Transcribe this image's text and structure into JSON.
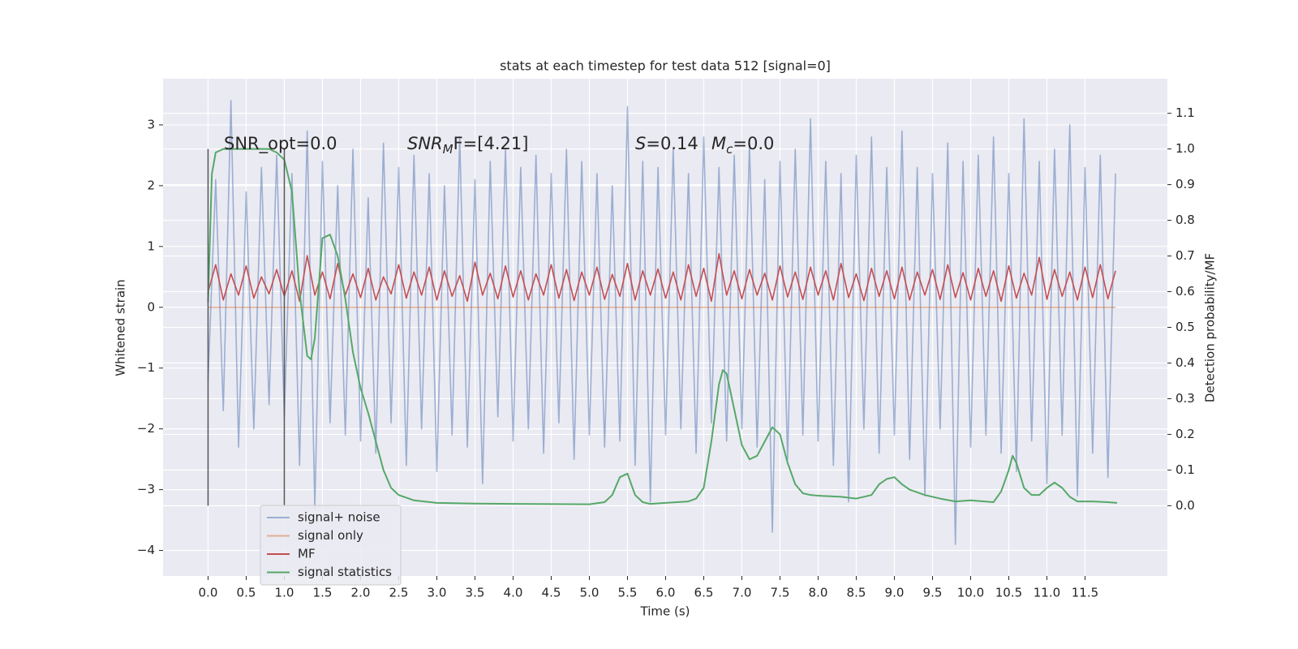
{
  "chart_data": {
    "type": "line",
    "title": "stats at each timestep for test data 512 [signal=0]",
    "xlabel": "Time (s)",
    "ylabel": "Whitened strain",
    "y2label": "Detection probability/MF",
    "xlim": [
      -0.59,
      12.58
    ],
    "ylim": [
      -4.42,
      3.76
    ],
    "y2lim": [
      -0.197,
      1.197
    ],
    "xticks": [
      {
        "value": 0,
        "label": "0.0"
      },
      0.5,
      {
        "value": 1,
        "label": "1.0"
      },
      1.5,
      {
        "value": 2,
        "label": "2.0"
      },
      2.5,
      {
        "value": 3,
        "label": "3.0"
      },
      3.5,
      {
        "value": 4,
        "label": "4.0"
      },
      4.5,
      {
        "value": 5,
        "label": "5.0"
      },
      5.5,
      {
        "value": 6,
        "label": "6.0"
      },
      6.5,
      {
        "value": 7,
        "label": "7.0"
      },
      7.5,
      {
        "value": 8,
        "label": "8.0"
      },
      8.5,
      {
        "value": 9,
        "label": "9.0"
      },
      9.5,
      {
        "value": 10,
        "label": "10.0"
      },
      10.5,
      {
        "value": 11,
        "label": "11.0"
      },
      11.5
    ],
    "yticks": [
      {
        "value": -4,
        "label": "−4"
      },
      {
        "value": -3,
        "label": "−3"
      },
      {
        "value": -2,
        "label": "−2"
      },
      {
        "value": -1,
        "label": "−1"
      },
      0,
      1,
      2,
      3
    ],
    "y2ticks": [
      {
        "value": 0,
        "label": "0.0"
      },
      0.1,
      0.2,
      0.3,
      0.4,
      0.5,
      0.6,
      0.7,
      0.8,
      0.9,
      {
        "value": 1,
        "label": "1.0"
      },
      1.1
    ],
    "grid": true,
    "legend_loc": "lower left",
    "x": [
      0,
      0.1,
      0.2,
      0.3,
      0.4,
      0.5,
      0.6,
      0.7,
      0.8,
      0.9,
      1,
      1.1,
      1.2,
      1.3,
      1.4,
      1.5,
      1.6,
      1.7,
      1.8,
      1.9,
      2,
      2.1,
      2.2,
      2.3,
      2.4,
      2.5,
      2.6,
      2.7,
      2.8,
      2.9,
      3,
      3.1,
      3.2,
      3.3,
      3.4,
      3.5,
      3.6,
      3.7,
      3.8,
      3.9,
      4,
      4.1,
      4.2,
      4.3,
      4.4,
      4.5,
      4.6,
      4.7,
      4.8,
      4.9,
      5,
      5.1,
      5.2,
      5.3,
      5.4,
      5.5,
      5.6,
      5.7,
      5.8,
      5.9,
      6,
      6.1,
      6.2,
      6.3,
      6.4,
      6.5,
      6.6,
      6.7,
      6.8,
      6.9,
      7,
      7.1,
      7.2,
      7.3,
      7.4,
      7.5,
      7.6,
      7.7,
      7.8,
      7.9,
      8,
      8.1,
      8.2,
      8.3,
      8.4,
      8.5,
      8.6,
      8.7,
      8.8,
      8.9,
      9,
      9.1,
      9.2,
      9.3,
      9.4,
      9.5,
      9.6,
      9.7,
      9.8,
      9.9,
      10,
      10.1,
      10.2,
      10.3,
      10.4,
      10.5,
      10.6,
      10.7,
      10.8,
      10.9,
      11,
      11.1,
      11.2,
      11.3,
      11.4,
      11.5,
      11.6,
      11.7,
      11.8,
      11.9
    ],
    "series": [
      {
        "name": "signal only",
        "color": "#dd8452",
        "alpha": 0.6,
        "x": [
          0,
          11.9
        ],
        "values": [
          0,
          0
        ]
      },
      {
        "name": "signal+ noise",
        "color": "#4c72b0",
        "alpha": 0.5,
        "values": [
          -1.2,
          2.1,
          -1.7,
          3.4,
          -2.3,
          1.9,
          -2.0,
          2.3,
          -1.6,
          2.5,
          -1.8,
          2.2,
          -2.6,
          2.9,
          -3.3,
          2.4,
          -1.9,
          2.0,
          -2.1,
          2.6,
          -2.2,
          1.8,
          -2.4,
          2.7,
          -1.9,
          2.3,
          -2.6,
          2.5,
          -2.0,
          2.2,
          -2.7,
          2.0,
          -2.1,
          2.8,
          -2.3,
          2.1,
          -2.9,
          2.4,
          -1.8,
          2.6,
          -2.2,
          2.3,
          -2.0,
          2.5,
          -2.4,
          2.2,
          -1.9,
          2.6,
          -2.5,
          2.4,
          -2.1,
          2.2,
          -2.3,
          2.0,
          -2.2,
          3.3,
          -2.6,
          2.4,
          -3.2,
          2.3,
          -2.1,
          2.6,
          -2.0,
          2.2,
          -2.4,
          2.8,
          -1.9,
          2.3,
          -2.2,
          2.5,
          -2.0,
          2.7,
          -2.3,
          2.1,
          -3.7,
          2.4,
          -2.5,
          2.6,
          -2.1,
          3.1,
          -2.2,
          2.4,
          -2.6,
          2.2,
          -3.2,
          2.5,
          -2.0,
          2.8,
          -2.4,
          2.3,
          -2.1,
          2.9,
          -2.5,
          2.3,
          -3.1,
          2.2,
          -2.0,
          2.7,
          -3.9,
          2.4,
          -2.3,
          2.5,
          -2.1,
          2.8,
          -2.4,
          2.2,
          -2.7,
          3.1,
          -2.2,
          2.4,
          -2.9,
          2.6,
          -2.1,
          3.0,
          -3.1,
          2.3,
          -2.4,
          2.5,
          -2.8,
          2.2
        ]
      },
      {
        "name": "MF",
        "color": "#c44e52",
        "alpha": 1,
        "values": [
          0.25,
          0.7,
          0.12,
          0.55,
          0.2,
          0.68,
          0.15,
          0.5,
          0.22,
          0.62,
          0.18,
          0.6,
          0.1,
          0.85,
          0.2,
          0.58,
          0.14,
          0.72,
          0.2,
          0.55,
          0.16,
          0.64,
          0.12,
          0.5,
          0.22,
          0.7,
          0.15,
          0.58,
          0.2,
          0.66,
          0.12,
          0.6,
          0.18,
          0.52,
          0.1,
          0.74,
          0.2,
          0.56,
          0.14,
          0.68,
          0.17,
          0.6,
          0.12,
          0.55,
          0.2,
          0.7,
          0.15,
          0.62,
          0.11,
          0.58,
          0.2,
          0.66,
          0.13,
          0.54,
          0.18,
          0.72,
          0.12,
          0.6,
          0.2,
          0.63,
          0.15,
          0.58,
          0.12,
          0.7,
          0.18,
          0.64,
          0.1,
          0.88,
          0.2,
          0.6,
          0.14,
          0.62,
          0.2,
          0.56,
          0.12,
          0.68,
          0.17,
          0.58,
          0.13,
          0.66,
          0.2,
          0.6,
          0.12,
          0.72,
          0.16,
          0.55,
          0.11,
          0.64,
          0.18,
          0.6,
          0.14,
          0.66,
          0.12,
          0.58,
          0.2,
          0.62,
          0.13,
          0.7,
          0.16,
          0.57,
          0.12,
          0.64,
          0.18,
          0.6,
          0.1,
          0.68,
          0.15,
          0.56,
          0.2,
          0.82,
          0.13,
          0.62,
          0.18,
          0.58,
          0.12,
          0.66,
          0.16,
          0.7,
          0.14,
          0.6
        ]
      },
      {
        "name": "signal statistics",
        "color": "#55a868",
        "alpha": 1,
        "axis": "y2",
        "x": [
          0,
          0.05,
          0.1,
          0.2,
          0.3,
          0.4,
          0.5,
          0.6,
          0.7,
          0.8,
          0.9,
          0.95,
          1.0,
          1.1,
          1.2,
          1.3,
          1.35,
          1.4,
          1.5,
          1.6,
          1.7,
          1.8,
          1.9,
          2.0,
          2.1,
          2.2,
          2.3,
          2.4,
          2.5,
          2.7,
          3.0,
          3.5,
          4.0,
          5.0,
          5.2,
          5.3,
          5.4,
          5.5,
          5.6,
          5.7,
          5.8,
          6.0,
          6.3,
          6.4,
          6.5,
          6.6,
          6.7,
          6.75,
          6.8,
          6.9,
          7.0,
          7.1,
          7.2,
          7.3,
          7.4,
          7.5,
          7.6,
          7.7,
          7.8,
          7.9,
          8.0,
          8.3,
          8.5,
          8.7,
          8.8,
          8.9,
          9.0,
          9.1,
          9.2,
          9.4,
          9.6,
          9.8,
          10.0,
          10.3,
          10.4,
          10.5,
          10.55,
          10.6,
          10.7,
          10.8,
          10.9,
          11.0,
          11.1,
          11.2,
          11.3,
          11.4,
          11.6,
          11.8,
          11.92
        ],
        "values": [
          0.57,
          0.93,
          0.99,
          1.0,
          1.0,
          1.0,
          1.0,
          1.0,
          1.0,
          1.0,
          0.99,
          0.98,
          0.97,
          0.88,
          0.6,
          0.42,
          0.41,
          0.47,
          0.75,
          0.76,
          0.7,
          0.58,
          0.43,
          0.33,
          0.26,
          0.18,
          0.1,
          0.05,
          0.03,
          0.015,
          0.008,
          0.006,
          0.005,
          0.004,
          0.01,
          0.03,
          0.08,
          0.09,
          0.03,
          0.01,
          0.005,
          0.008,
          0.012,
          0.02,
          0.05,
          0.18,
          0.34,
          0.38,
          0.37,
          0.27,
          0.17,
          0.13,
          0.14,
          0.18,
          0.22,
          0.2,
          0.12,
          0.06,
          0.035,
          0.03,
          0.028,
          0.025,
          0.02,
          0.03,
          0.06,
          0.075,
          0.08,
          0.06,
          0.045,
          0.03,
          0.02,
          0.012,
          0.015,
          0.01,
          0.04,
          0.1,
          0.14,
          0.12,
          0.05,
          0.03,
          0.03,
          0.05,
          0.065,
          0.05,
          0.025,
          0.012,
          0.012,
          0.01,
          0.008
        ]
      }
    ],
    "vlines": [
      {
        "x": 0,
        "ymin": 0,
        "ymax": 1,
        "color": "#555555"
      },
      {
        "x": 1,
        "ymin": 0,
        "ymax": 1,
        "color": "#555555"
      }
    ],
    "annotations": [
      [
        {
          "text": "SNR_opt=0.0"
        }
      ],
      [
        {
          "text": "SNR",
          "italic": true
        },
        {
          "text": "M",
          "italic": true,
          "sub": true
        },
        {
          "text": "F=[4.21]"
        }
      ],
      [
        {
          "text": "S",
          "italic": true
        },
        {
          "text": "=0.14"
        }
      ],
      [
        {
          "text": "M",
          "italic": true
        },
        {
          "text": "c",
          "italic": true,
          "sub": true
        },
        {
          "text": "=0.0"
        }
      ]
    ]
  }
}
